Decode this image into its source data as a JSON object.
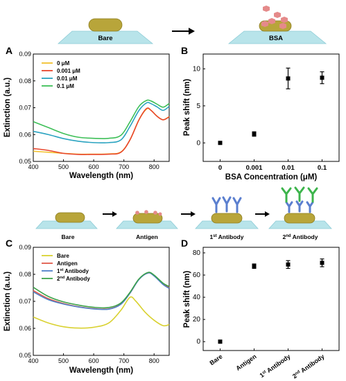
{
  "schematic_top": {
    "bare_label": "Bare",
    "bsa_label": "BSA"
  },
  "schematic_bottom": {
    "labels": [
      "Bare",
      "Antigen",
      "1st Antibody",
      "2nd Antibody"
    ],
    "antibody1_main": "1",
    "antibody1_sup": "st",
    "antibody1_rest": " Antibody",
    "antibody2_main": "2",
    "antibody2_sup": "nd",
    "antibody2_rest": " Antibody"
  },
  "colors": {
    "gold_rod": "#b8a53a",
    "substrate": "#b8e4ea",
    "antigen": "#e58a8a",
    "antibody1": "#5b7fcf",
    "antibody2": "#3cb44b"
  },
  "panel_letters": [
    "A",
    "B",
    "C",
    "D"
  ],
  "chart_data": [
    {
      "panel": "A",
      "type": "line",
      "xlabel": "Wavelength (nm)",
      "ylabel": "Extinction (a.u.)",
      "xlim": [
        400,
        850
      ],
      "ylim": [
        0.05,
        0.09
      ],
      "xticks": [
        400,
        500,
        600,
        700,
        800
      ],
      "yticks": [
        "0.05",
        "0.06",
        "0.07",
        "0.08",
        "0.09"
      ],
      "legend_position": "top-left",
      "series": [
        {
          "name": "0 μM",
          "color": "#f2c12e",
          "points": [
            [
              400,
              0.0538
            ],
            [
              450,
              0.0534
            ],
            [
              500,
              0.053
            ],
            [
              550,
              0.0527
            ],
            [
              600,
              0.0527
            ],
            [
              650,
              0.0528
            ],
            [
              690,
              0.0535
            ],
            [
              720,
              0.058
            ],
            [
              750,
              0.0655
            ],
            [
              775,
              0.0695
            ],
            [
              790,
              0.069
            ],
            [
              810,
              0.0668
            ],
            [
              830,
              0.0655
            ],
            [
              850,
              0.0667
            ]
          ]
        },
        {
          "name": "0.001 μM",
          "color": "#e8452c",
          "points": [
            [
              400,
              0.0548
            ],
            [
              450,
              0.0541
            ],
            [
              500,
              0.053
            ],
            [
              550,
              0.0526
            ],
            [
              600,
              0.0526
            ],
            [
              650,
              0.0527
            ],
            [
              690,
              0.0534
            ],
            [
              720,
              0.058
            ],
            [
              750,
              0.0655
            ],
            [
              775,
              0.0697
            ],
            [
              790,
              0.069
            ],
            [
              810,
              0.0668
            ],
            [
              830,
              0.0655
            ],
            [
              850,
              0.0666
            ]
          ]
        },
        {
          "name": "0.01 μM",
          "color": "#2aa3c0",
          "points": [
            [
              400,
              0.0612
            ],
            [
              450,
              0.06
            ],
            [
              500,
              0.0585
            ],
            [
              550,
              0.0575
            ],
            [
              600,
              0.057
            ],
            [
              650,
              0.057
            ],
            [
              690,
              0.058
            ],
            [
              720,
              0.063
            ],
            [
              750,
              0.069
            ],
            [
              775,
              0.0718
            ],
            [
              790,
              0.0715
            ],
            [
              810,
              0.0703
            ],
            [
              830,
              0.069
            ],
            [
              850,
              0.0705
            ]
          ]
        },
        {
          "name": "0.1 μM",
          "color": "#3dbf57",
          "points": [
            [
              400,
              0.0648
            ],
            [
              450,
              0.0626
            ],
            [
              500,
              0.0604
            ],
            [
              550,
              0.059
            ],
            [
              600,
              0.0586
            ],
            [
              650,
              0.0586
            ],
            [
              690,
              0.0597
            ],
            [
              720,
              0.0647
            ],
            [
              750,
              0.0705
            ],
            [
              775,
              0.0727
            ],
            [
              790,
              0.0725
            ],
            [
              810,
              0.0713
            ],
            [
              830,
              0.0702
            ],
            [
              850,
              0.0716
            ]
          ]
        }
      ]
    },
    {
      "panel": "B",
      "type": "scatter",
      "xlabel": "BSA Concentration (μM)",
      "ylabel": "Peak shift (nm)",
      "categories": [
        "0",
        "0.001",
        "0.01",
        "0.1"
      ],
      "values": [
        0.0,
        1.2,
        8.7,
        8.8
      ],
      "errors": [
        0.1,
        0.3,
        1.4,
        0.8
      ],
      "ylim": [
        -2.5,
        12
      ],
      "yticks": [
        0,
        5,
        10
      ]
    },
    {
      "panel": "C",
      "type": "line",
      "xlabel": "Wavelength (nm)",
      "ylabel": "Extinction (a.u.)",
      "xlim": [
        400,
        850
      ],
      "ylim": [
        0.05,
        0.09
      ],
      "xticks": [
        400,
        500,
        600,
        700,
        800
      ],
      "yticks": [
        "0.05",
        "0.06",
        "0.07",
        "0.08",
        "0.09"
      ],
      "legend_position": "top-left",
      "series": [
        {
          "name": "Bare",
          "color": "#d9d130",
          "points": [
            [
              400,
              0.0642
            ],
            [
              450,
              0.062
            ],
            [
              500,
              0.0606
            ],
            [
              550,
              0.0601
            ],
            [
              600,
              0.0604
            ],
            [
              650,
              0.062
            ],
            [
              690,
              0.0667
            ],
            [
              720,
              0.0715
            ],
            [
              740,
              0.07
            ],
            [
              770,
              0.066
            ],
            [
              800,
              0.063
            ],
            [
              830,
              0.061
            ],
            [
              850,
              0.0614
            ]
          ]
        },
        {
          "name": "Antigen",
          "color": "#e05a4a",
          "points": [
            [
              400,
              0.074
            ],
            [
              450,
              0.071
            ],
            [
              500,
              0.0692
            ],
            [
              550,
              0.068
            ],
            [
              600,
              0.0673
            ],
            [
              650,
              0.0672
            ],
            [
              690,
              0.069
            ],
            [
              720,
              0.073
            ],
            [
              750,
              0.0782
            ],
            [
              780,
              0.0805
            ],
            [
              800,
              0.0795
            ],
            [
              830,
              0.0765
            ],
            [
              850,
              0.0752
            ]
          ]
        },
        {
          "name": "1st Antibody",
          "label_main": "1",
          "label_sup": "st",
          "label_rest": " Antibody",
          "color": "#4f80c9",
          "points": [
            [
              400,
              0.0735
            ],
            [
              450,
              0.0706
            ],
            [
              500,
              0.069
            ],
            [
              550,
              0.0679
            ],
            [
              600,
              0.0672
            ],
            [
              650,
              0.0671
            ],
            [
              690,
              0.0689
            ],
            [
              720,
              0.073
            ],
            [
              750,
              0.0781
            ],
            [
              780,
              0.0805
            ],
            [
              800,
              0.0794
            ],
            [
              830,
              0.0762
            ],
            [
              850,
              0.0748
            ]
          ]
        },
        {
          "name": "2nd Antibody",
          "label_main": "2",
          "label_sup": "nd",
          "label_rest": " Antibody",
          "color": "#3ca24a",
          "points": [
            [
              400,
              0.0752
            ],
            [
              450,
              0.0718
            ],
            [
              500,
              0.0698
            ],
            [
              550,
              0.0686
            ],
            [
              600,
              0.0678
            ],
            [
              650,
              0.0677
            ],
            [
              690,
              0.0694
            ],
            [
              720,
              0.0733
            ],
            [
              750,
              0.0783
            ],
            [
              780,
              0.0807
            ],
            [
              800,
              0.0797
            ],
            [
              830,
              0.0767
            ],
            [
              850,
              0.0755
            ]
          ]
        }
      ]
    },
    {
      "panel": "D",
      "type": "scatter",
      "xlabel": "",
      "ylabel": "Peak shift (nm)",
      "categories": [
        "Bare",
        "Antigen",
        "1st Antibody",
        "2nd Antibody"
      ],
      "category_parts": [
        [
          "Bare",
          "",
          ""
        ],
        [
          "Antigen",
          "",
          ""
        ],
        [
          "1",
          "st",
          " Antibody"
        ],
        [
          "2",
          "nd",
          " Antibody"
        ]
      ],
      "values": [
        0.0,
        68.0,
        69.5,
        71.0
      ],
      "errors": [
        0.5,
        2.0,
        3.5,
        3.5
      ],
      "ylim": [
        -8,
        85
      ],
      "yticks": [
        0,
        20,
        40,
        60,
        80
      ]
    }
  ]
}
